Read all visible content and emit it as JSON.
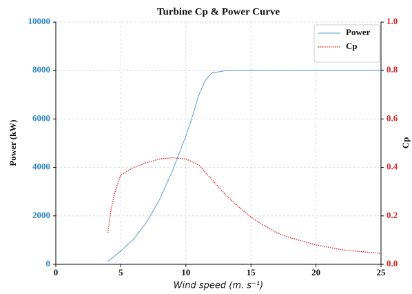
{
  "chart_data": {
    "type": "line",
    "title": "Turbine Cp & Power Curve",
    "xlabel": "Wind speed (m. s⁻¹)",
    "ylabel": "Power (kW)",
    "y2label": "Cp",
    "xlim": [
      0,
      25
    ],
    "xticks": [
      0,
      5,
      10,
      15,
      20,
      25
    ],
    "ylim": [
      0,
      10000
    ],
    "yticks": [
      0,
      2000,
      4000,
      6000,
      8000,
      10000
    ],
    "y2lim": [
      0,
      1
    ],
    "y2ticks": [
      {
        "value": 0,
        "label": "0.0"
      },
      0.2,
      0.4,
      0.6,
      0.8,
      {
        "value": 1,
        "label": "1.0"
      }
    ],
    "grid": true,
    "legend": "upper right",
    "ytick_color": "#2e86c1",
    "y2tick_color": "#d62728",
    "series": [
      {
        "name": "Power",
        "color": "#5b9bd5",
        "style": "solid",
        "x": [
          4,
          5,
          6,
          7,
          8,
          9,
          10,
          10.5,
          11,
          11.5,
          12,
          13,
          14,
          16,
          18,
          20,
          22,
          25
        ],
        "values": [
          120,
          550,
          1050,
          1750,
          2700,
          3900,
          5300,
          6100,
          7000,
          7600,
          7900,
          7990,
          8000,
          8000,
          8000,
          8000,
          8000,
          8000
        ]
      },
      {
        "name": "Cp",
        "color": "#d62728",
        "style": "dotted",
        "axis": "y2",
        "x": [
          4,
          4.2,
          4.5,
          5,
          6,
          7,
          8,
          9,
          10,
          11,
          12,
          13,
          14,
          15,
          16,
          17,
          18,
          19,
          20,
          21,
          22,
          23,
          24,
          25
        ],
        "values": [
          0.13,
          0.21,
          0.29,
          0.37,
          0.4,
          0.42,
          0.435,
          0.44,
          0.435,
          0.41,
          0.35,
          0.29,
          0.24,
          0.195,
          0.16,
          0.13,
          0.11,
          0.095,
          0.08,
          0.07,
          0.06,
          0.055,
          0.05,
          0.045
        ]
      }
    ]
  }
}
